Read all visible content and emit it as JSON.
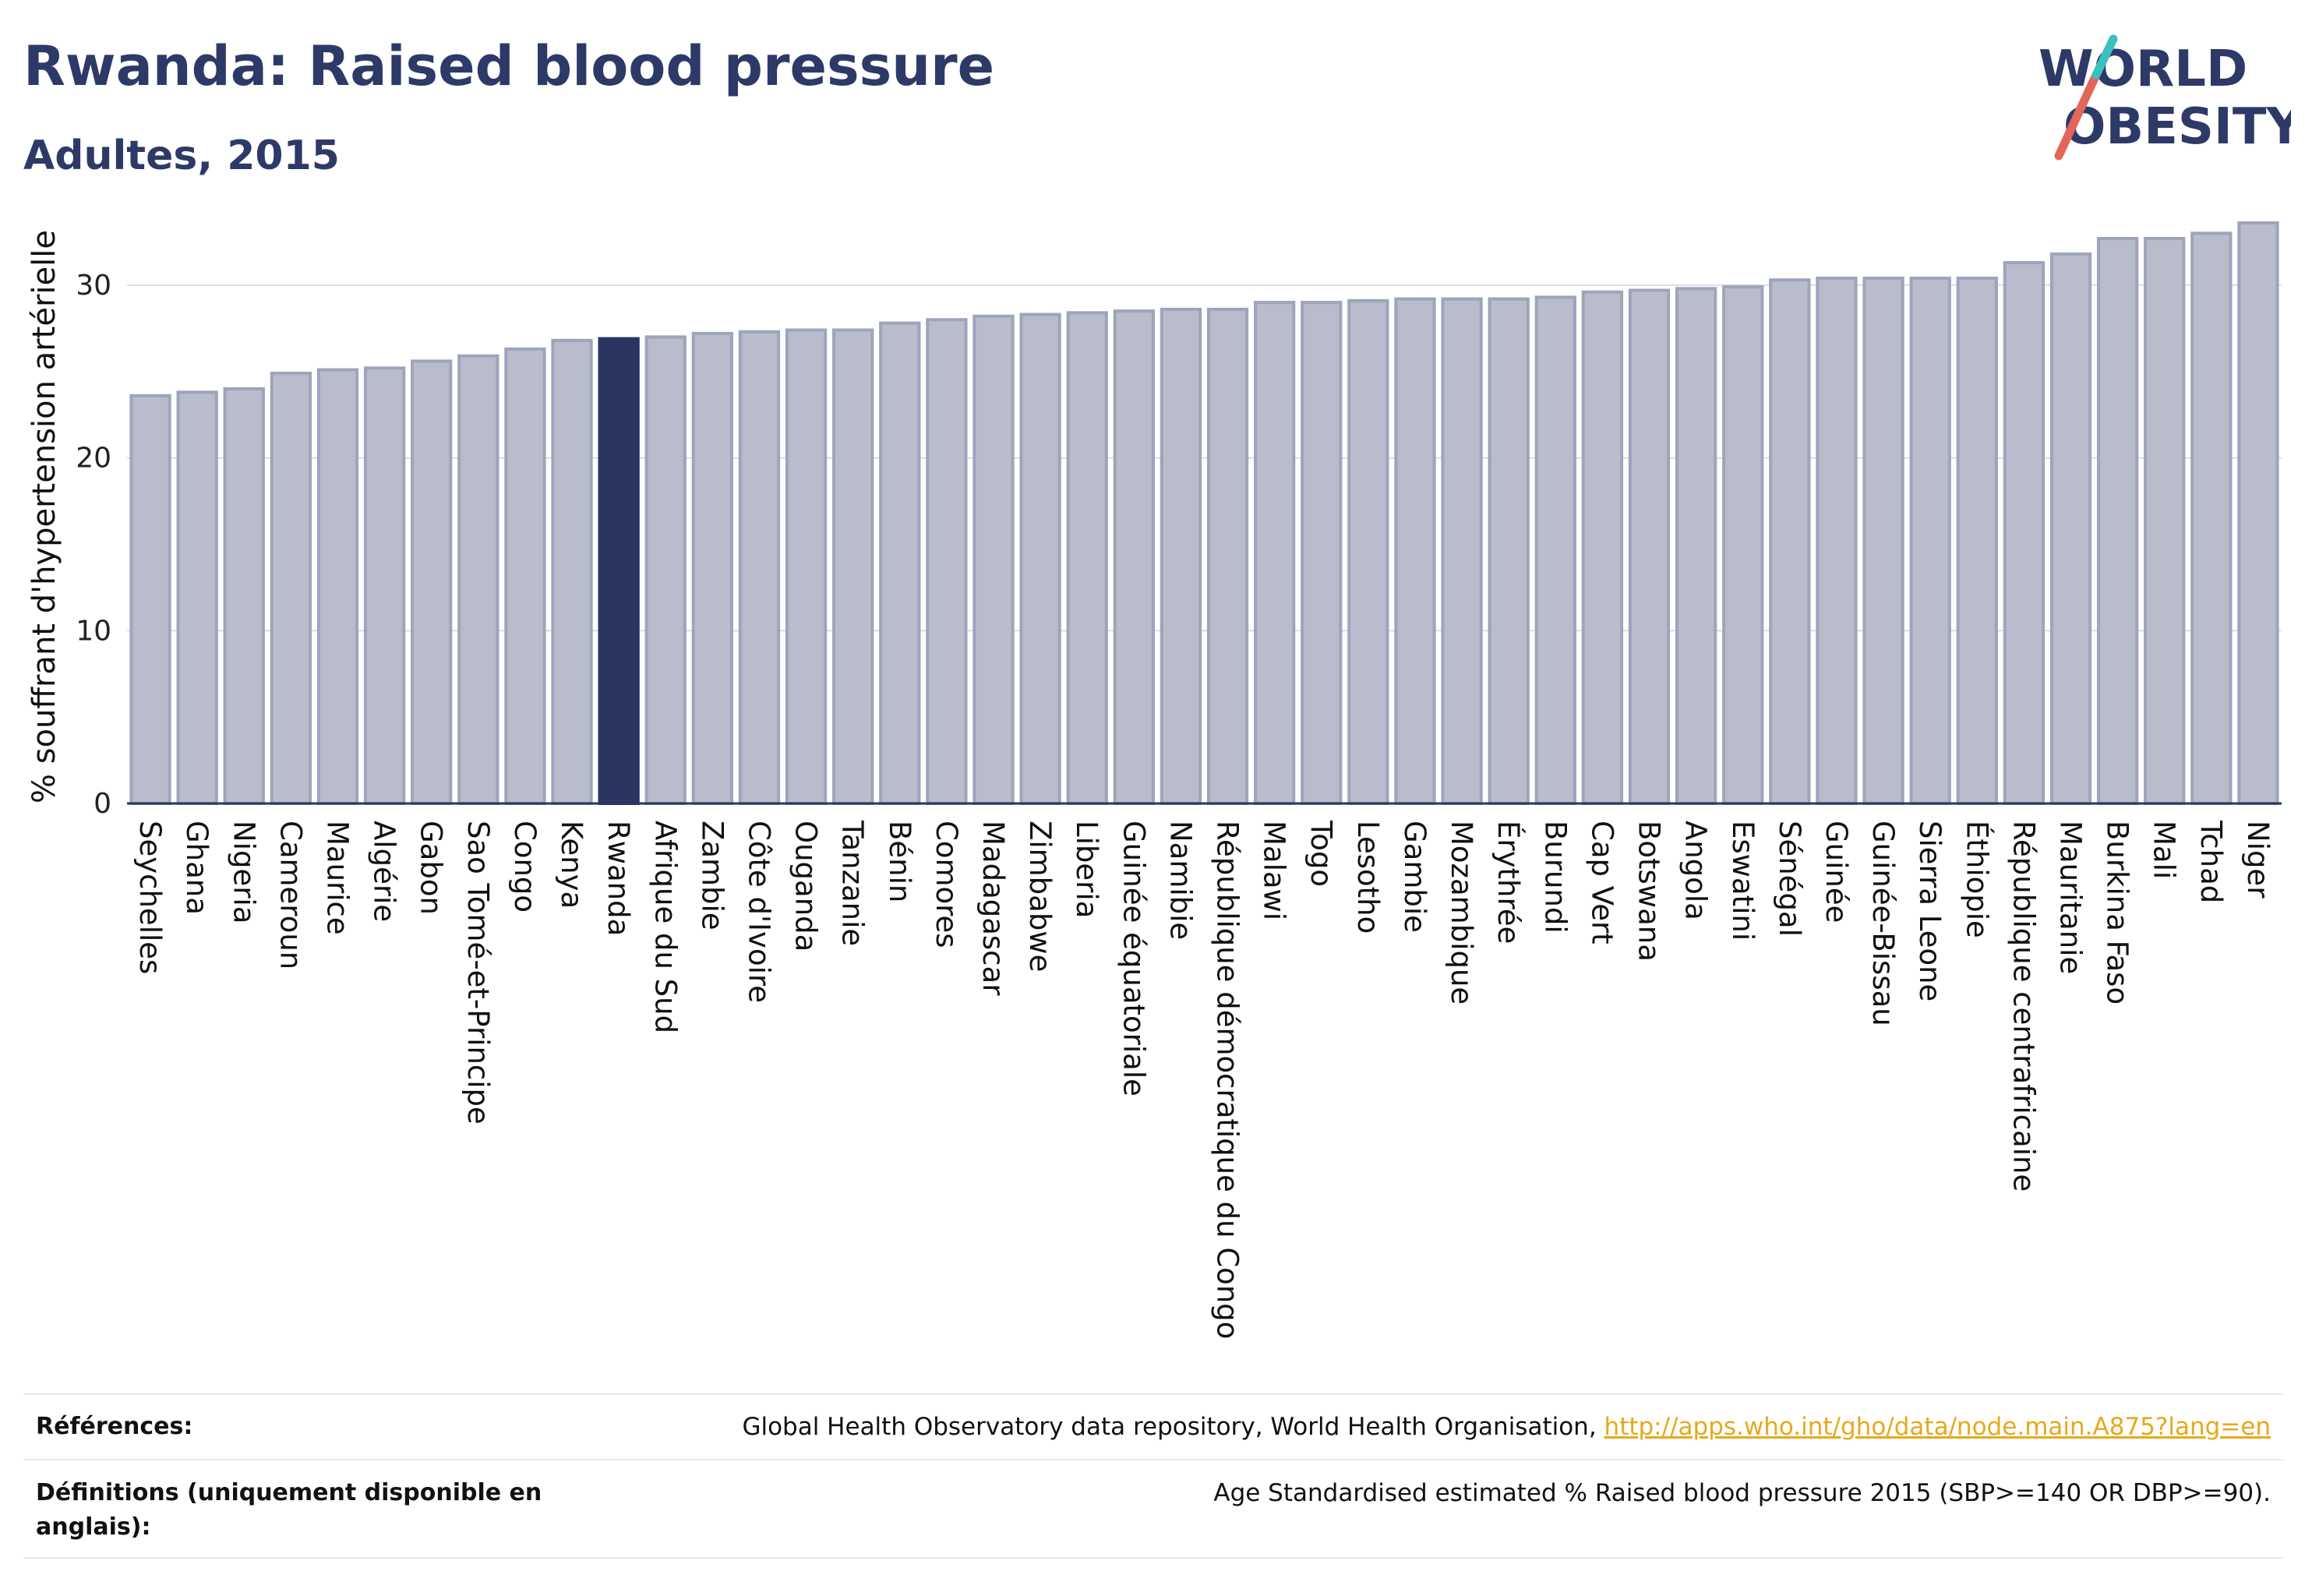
{
  "header": {
    "title": "Rwanda: Raised blood pressure",
    "subtitle": "Adultes, 2015"
  },
  "logo": {
    "line1": "WORLD",
    "line2": "OBESITY"
  },
  "colors": {
    "bar": "#b8bccb",
    "bar_border": "#9ea4bb",
    "highlight": "#2b3561",
    "title": "#2d3a67",
    "grid": "#dcdce4",
    "link": "#e6a91c"
  },
  "chart_data": {
    "type": "bar",
    "title": "Rwanda: Raised blood pressure",
    "subtitle": "Adultes, 2015",
    "ylabel": "% souffrant d'hypertension artérielle",
    "xlabel": "",
    "ylim": [
      0,
      35
    ],
    "yticks": [
      0,
      10,
      20,
      30
    ],
    "grid": true,
    "highlight": "Rwanda",
    "categories": [
      "Seychelles",
      "Ghana",
      "Nigeria",
      "Cameroun",
      "Maurice",
      "Algérie",
      "Gabon",
      "Sao Tomé-et-Principe",
      "Congo",
      "Kenya",
      "Rwanda",
      "Afrique du Sud",
      "Zambie",
      "Côte d'Ivoire",
      "Ouganda",
      "Tanzanie",
      "Bénin",
      "Comores",
      "Madagascar",
      "Zimbabwe",
      "Liberia",
      "Guinée équatoriale",
      "Namibie",
      "République démocratique du Congo",
      "Malawi",
      "Togo",
      "Lesotho",
      "Gambie",
      "Mozambique",
      "Érythrée",
      "Burundi",
      "Cap Vert",
      "Botswana",
      "Angola",
      "Eswatini",
      "Sénégal",
      "Guinée",
      "Guinée-Bissau",
      "Sierra Leone",
      "Éthiopie",
      "République centrafricaine",
      "Mauritanie",
      "Burkina Faso",
      "Mali",
      "Tchad",
      "Niger"
    ],
    "values": [
      23.6,
      23.8,
      24.0,
      24.9,
      25.1,
      25.2,
      25.6,
      25.9,
      26.3,
      26.8,
      26.9,
      27.0,
      27.2,
      27.3,
      27.4,
      27.4,
      27.8,
      28.0,
      28.2,
      28.3,
      28.4,
      28.5,
      28.6,
      28.6,
      29.0,
      29.0,
      29.1,
      29.2,
      29.2,
      29.2,
      29.3,
      29.6,
      29.7,
      29.8,
      29.9,
      30.3,
      30.4,
      30.4,
      30.4,
      30.4,
      31.3,
      31.8,
      32.7,
      32.7,
      33.0,
      33.6
    ]
  },
  "references": {
    "sources_label": "Références:",
    "sources_text": "Global Health Observatory data repository, World Health Organisation,",
    "sources_link": "http://apps.who.int/gho/data/node.main.A875?lang=en",
    "definitions_label": "Définitions (uniquement disponible en anglais):",
    "definitions_text": "Age Standardised estimated % Raised blood pressure 2015 (SBP>=140 OR DBP>=90)."
  }
}
